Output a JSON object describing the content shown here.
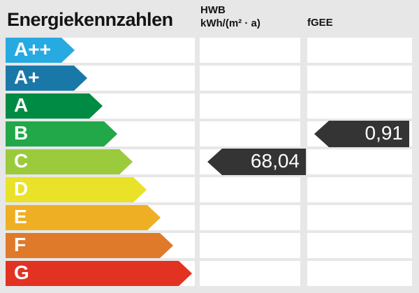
{
  "title": "Energiekennzahlen",
  "columns": {
    "hwb": {
      "name": "HWB",
      "unit": "kWh/(m² · a)"
    },
    "fgee": {
      "name": "fGEE"
    }
  },
  "scale": {
    "levels": [
      {
        "label": "A++",
        "color": "#27aae1",
        "arrow_width": 99
      },
      {
        "label": "A+",
        "color": "#1a78a8",
        "arrow_width": 117
      },
      {
        "label": "A",
        "color": "#008b45",
        "arrow_width": 139
      },
      {
        "label": "B",
        "color": "#22a749",
        "arrow_width": 160
      },
      {
        "label": "C",
        "color": "#9bca3c",
        "arrow_width": 182
      },
      {
        "label": "D",
        "color": "#e9e228",
        "arrow_width": 202
      },
      {
        "label": "E",
        "color": "#efaf24",
        "arrow_width": 222
      },
      {
        "label": "F",
        "color": "#df7a2b",
        "arrow_width": 240
      },
      {
        "label": "G",
        "color": "#e23222",
        "arrow_width": 267
      }
    ]
  },
  "values": {
    "hwb": {
      "display": "68,04",
      "rating": "C",
      "badge_color": "#343434"
    },
    "fgee": {
      "display": "0,91",
      "rating": "B",
      "badge_color": "#343434"
    }
  },
  "chart_data": {
    "type": "table",
    "title": "Energiekennzahlen",
    "categories": [
      "A++",
      "A+",
      "A",
      "B",
      "C",
      "D",
      "E",
      "F",
      "G"
    ],
    "columns": [
      "HWB kWh/(m² · a)",
      "fGEE"
    ],
    "values": [
      {
        "metric": "HWB",
        "unit": "kWh/(m² · a)",
        "value": 68.04,
        "display": "68,04",
        "rating": "C"
      },
      {
        "metric": "fGEE",
        "value": 0.91,
        "display": "0,91",
        "rating": "B"
      }
    ],
    "palette": [
      "#27aae1",
      "#1a78a8",
      "#008b45",
      "#22a749",
      "#9bca3c",
      "#e9e228",
      "#efaf24",
      "#df7a2b",
      "#e23222"
    ],
    "layout": {
      "scale_direction": "best-to-worst top-down",
      "value_marker": "dark left-pointing tag aligned to rating row"
    }
  }
}
